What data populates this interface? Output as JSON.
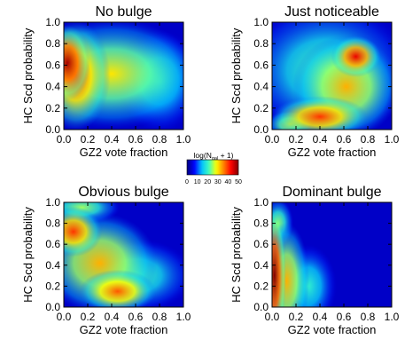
{
  "chart_data": [
    {
      "type": "heatmap",
      "title": "No bulge",
      "xlabel": "GZ2 vote fraction",
      "ylabel": "HC Scd probability",
      "xlim": [
        0.0,
        1.0
      ],
      "ylim": [
        0.0,
        1.0
      ],
      "xticks": [
        "0.0",
        "0.2",
        "0.4",
        "0.6",
        "0.8",
        "1.0"
      ],
      "yticks": [
        "0.0",
        "0.2",
        "0.4",
        "0.6",
        "0.8",
        "1.0"
      ],
      "density_blobs": [
        {
          "x": 0.03,
          "y": 0.62,
          "sx": 0.12,
          "sy": 0.22,
          "value": 48
        },
        {
          "x": 0.1,
          "y": 0.5,
          "sx": 0.18,
          "sy": 0.32,
          "value": 40
        },
        {
          "x": 0.4,
          "y": 0.52,
          "sx": 0.45,
          "sy": 0.32,
          "value": 30
        },
        {
          "x": 0.8,
          "y": 0.45,
          "sx": 0.22,
          "sy": 0.3,
          "value": 20
        }
      ]
    },
    {
      "type": "heatmap",
      "title": "Just noticeable",
      "xlabel": "GZ2 vote fraction",
      "ylabel": "HC Scd probability",
      "xlim": [
        0.0,
        1.0
      ],
      "ylim": [
        0.0,
        1.0
      ],
      "xticks": [
        "0.0",
        "0.2",
        "0.4",
        "0.6",
        "0.8",
        "1.0"
      ],
      "yticks": [
        "0.0",
        "0.2",
        "0.4",
        "0.6",
        "0.8",
        "1.0"
      ],
      "density_blobs": [
        {
          "x": 0.7,
          "y": 0.68,
          "sx": 0.13,
          "sy": 0.12,
          "value": 44
        },
        {
          "x": 0.4,
          "y": 0.12,
          "sx": 0.25,
          "sy": 0.12,
          "value": 40
        },
        {
          "x": 0.62,
          "y": 0.4,
          "sx": 0.28,
          "sy": 0.3,
          "value": 33
        },
        {
          "x": 0.15,
          "y": 0.05,
          "sx": 0.12,
          "sy": 0.08,
          "value": 30
        },
        {
          "x": 0.45,
          "y": 0.55,
          "sx": 0.45,
          "sy": 0.4,
          "value": 22
        }
      ]
    },
    {
      "type": "heatmap",
      "title": "Obvious bulge",
      "xlabel": "GZ2 vote fraction",
      "ylabel": "HC Scd probability",
      "xlim": [
        0.0,
        1.0
      ],
      "ylim": [
        0.0,
        1.0
      ],
      "xticks": [
        "0.0",
        "0.2",
        "0.4",
        "0.6",
        "0.8",
        "1.0"
      ],
      "yticks": [
        "0.0",
        "0.2",
        "0.4",
        "0.6",
        "0.8",
        "1.0"
      ],
      "density_blobs": [
        {
          "x": 0.08,
          "y": 0.72,
          "sx": 0.15,
          "sy": 0.15,
          "value": 40
        },
        {
          "x": 0.45,
          "y": 0.15,
          "sx": 0.2,
          "sy": 0.13,
          "value": 38
        },
        {
          "x": 0.3,
          "y": 0.42,
          "sx": 0.3,
          "sy": 0.3,
          "value": 33
        },
        {
          "x": 0.6,
          "y": 0.3,
          "sx": 0.3,
          "sy": 0.22,
          "value": 22
        },
        {
          "x": 0.15,
          "y": 0.95,
          "sx": 0.2,
          "sy": 0.1,
          "value": 25
        }
      ]
    },
    {
      "type": "heatmap",
      "title": "Dominant bulge",
      "xlabel": "GZ2 vote fraction",
      "ylabel": "HC Scd probability",
      "xlim": [
        0.0,
        1.0
      ],
      "ylim": [
        0.0,
        1.0
      ],
      "xticks": [
        "0.0",
        "0.2",
        "0.4",
        "0.6",
        "0.8",
        "1.0"
      ],
      "yticks": [
        "0.0",
        "0.2",
        "0.4",
        "0.6",
        "0.8",
        "1.0"
      ],
      "density_blobs": [
        {
          "x": 0.02,
          "y": 0.3,
          "sx": 0.06,
          "sy": 0.4,
          "value": 50
        },
        {
          "x": 0.12,
          "y": 0.25,
          "sx": 0.12,
          "sy": 0.35,
          "value": 33
        },
        {
          "x": 0.3,
          "y": 0.2,
          "sx": 0.15,
          "sy": 0.25,
          "value": 20
        },
        {
          "x": 0.05,
          "y": 0.8,
          "sx": 0.08,
          "sy": 0.15,
          "value": 25
        }
      ]
    }
  ],
  "colorbar": {
    "label": "log(N",
    "label_sub": "gal",
    "label_tail": " + 1)",
    "ticks": [
      "0",
      "10",
      "20",
      "30",
      "40",
      "50"
    ],
    "range": [
      0,
      50
    ],
    "colors": [
      "#000080",
      "#0000ff",
      "#00bfff",
      "#40ffbf",
      "#ffff00",
      "#ff8000",
      "#ff0000",
      "#800000"
    ]
  }
}
